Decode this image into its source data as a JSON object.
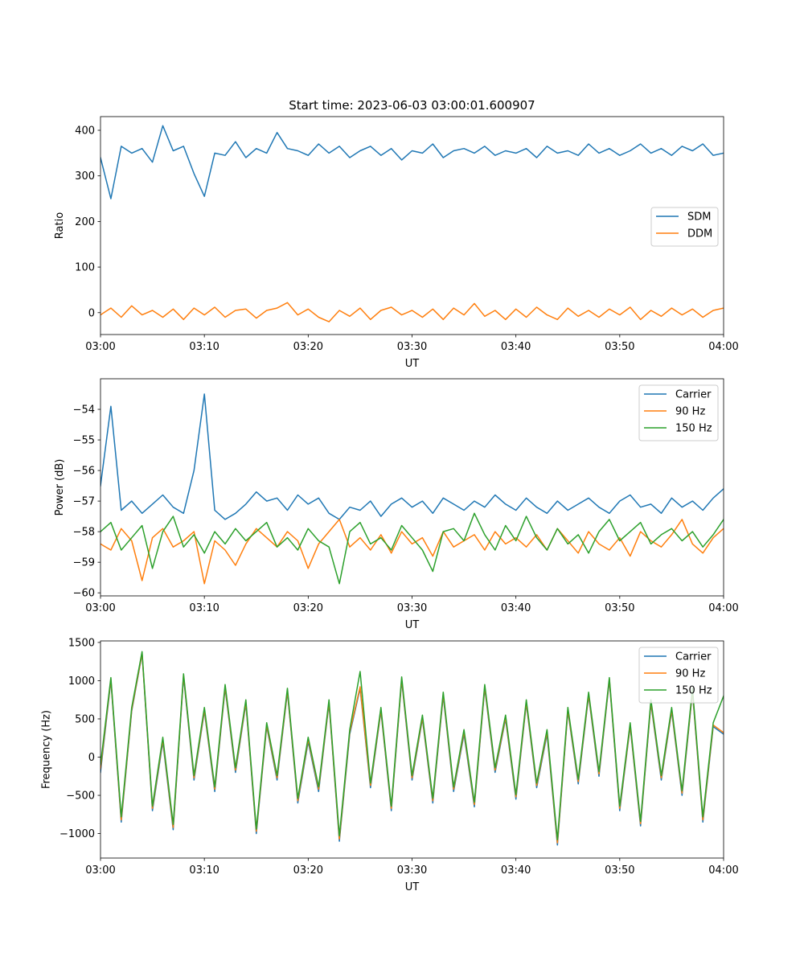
{
  "chart_data": [
    {
      "type": "line",
      "title": "Start time: 2023-06-03 03:00:01.600907",
      "xlabel": "UT",
      "ylabel": "Ratio",
      "xlim": [
        "03:00",
        "04:00"
      ],
      "xticks": [
        "03:00",
        "03:10",
        "03:20",
        "03:30",
        "03:40",
        "03:50",
        "04:00"
      ],
      "ylim": [
        -48,
        430
      ],
      "yticks": [
        0,
        100,
        200,
        300,
        400
      ],
      "yticklabels": [
        "0",
        "100",
        "200",
        "300",
        "400"
      ],
      "legend": "center-right",
      "grid": false,
      "x": [
        "03:00",
        "03:01",
        "03:02",
        "03:03",
        "03:04",
        "03:05",
        "03:06",
        "03:07",
        "03:08",
        "03:09",
        "03:10",
        "03:11",
        "03:12",
        "03:13",
        "03:14",
        "03:15",
        "03:16",
        "03:17",
        "03:18",
        "03:19",
        "03:20",
        "03:21",
        "03:22",
        "03:23",
        "03:24",
        "03:25",
        "03:26",
        "03:27",
        "03:28",
        "03:29",
        "03:30",
        "03:31",
        "03:32",
        "03:33",
        "03:34",
        "03:35",
        "03:36",
        "03:37",
        "03:38",
        "03:39",
        "03:40",
        "03:41",
        "03:42",
        "03:43",
        "03:44",
        "03:45",
        "03:46",
        "03:47",
        "03:48",
        "03:49",
        "03:50",
        "03:51",
        "03:52",
        "03:53",
        "03:54",
        "03:55",
        "03:56",
        "03:57",
        "03:58",
        "03:59",
        "04:00"
      ],
      "series": [
        {
          "name": "SDM",
          "color": "#1f77b4",
          "values": [
            340,
            250,
            365,
            350,
            360,
            330,
            410,
            355,
            365,
            305,
            255,
            350,
            345,
            375,
            340,
            360,
            350,
            395,
            360,
            355,
            345,
            370,
            350,
            365,
            340,
            355,
            365,
            345,
            360,
            335,
            355,
            350,
            370,
            340,
            355,
            360,
            350,
            365,
            345,
            355,
            350,
            360,
            340,
            365,
            350,
            355,
            345,
            370,
            350,
            360,
            345,
            355,
            370,
            350,
            360,
            345,
            365,
            355,
            370,
            345,
            350
          ]
        },
        {
          "name": "DDM",
          "color": "#ff7f0e",
          "values": [
            -5,
            10,
            -10,
            15,
            -5,
            5,
            -10,
            8,
            -15,
            10,
            -5,
            12,
            -10,
            5,
            8,
            -12,
            5,
            10,
            22,
            -5,
            8,
            -10,
            -20,
            5,
            -8,
            10,
            -15,
            5,
            12,
            -5,
            5,
            -10,
            8,
            -15,
            10,
            -5,
            20,
            -8,
            5,
            -15,
            8,
            -10,
            12,
            -5,
            -15,
            10,
            -8,
            5,
            -10,
            8,
            -5,
            12,
            -15,
            5,
            -8,
            10,
            -5,
            8,
            -10,
            5,
            10
          ]
        }
      ]
    },
    {
      "type": "line",
      "xlabel": "UT",
      "ylabel": "Power (dB)",
      "xlim": [
        "03:00",
        "04:00"
      ],
      "xticks": [
        "03:00",
        "03:10",
        "03:20",
        "03:30",
        "03:40",
        "03:50",
        "04:00"
      ],
      "ylim": [
        -60.1,
        -53.0
      ],
      "yticks": [
        -60,
        -59,
        -58,
        -57,
        -56,
        -55,
        -54
      ],
      "yticklabels": [
        "−60",
        "−59",
        "−58",
        "−57",
        "−56",
        "−55",
        "−54"
      ],
      "legend": "top-right",
      "grid": false,
      "x": [
        "03:00",
        "03:01",
        "03:02",
        "03:03",
        "03:04",
        "03:05",
        "03:06",
        "03:07",
        "03:08",
        "03:09",
        "03:10",
        "03:11",
        "03:12",
        "03:13",
        "03:14",
        "03:15",
        "03:16",
        "03:17",
        "03:18",
        "03:19",
        "03:20",
        "03:21",
        "03:22",
        "03:23",
        "03:24",
        "03:25",
        "03:26",
        "03:27",
        "03:28",
        "03:29",
        "03:30",
        "03:31",
        "03:32",
        "03:33",
        "03:34",
        "03:35",
        "03:36",
        "03:37",
        "03:38",
        "03:39",
        "03:40",
        "03:41",
        "03:42",
        "03:43",
        "03:44",
        "03:45",
        "03:46",
        "03:47",
        "03:48",
        "03:49",
        "03:50",
        "03:51",
        "03:52",
        "03:53",
        "03:54",
        "03:55",
        "03:56",
        "03:57",
        "03:58",
        "03:59",
        "04:00"
      ],
      "series": [
        {
          "name": "Carrier",
          "color": "#1f77b4",
          "values": [
            -56.5,
            -53.9,
            -57.3,
            -57.0,
            -57.4,
            -57.1,
            -56.8,
            -57.2,
            -57.4,
            -56.0,
            -53.5,
            -57.3,
            -57.6,
            -57.4,
            -57.1,
            -56.7,
            -57.0,
            -56.9,
            -57.3,
            -56.8,
            -57.1,
            -56.9,
            -57.4,
            -57.6,
            -57.2,
            -57.3,
            -57.0,
            -57.5,
            -57.1,
            -56.9,
            -57.2,
            -57.0,
            -57.4,
            -56.9,
            -57.1,
            -57.3,
            -57.0,
            -57.2,
            -56.8,
            -57.1,
            -57.3,
            -56.9,
            -57.2,
            -57.4,
            -57.0,
            -57.3,
            -57.1,
            -56.9,
            -57.2,
            -57.4,
            -57.0,
            -56.8,
            -57.2,
            -57.1,
            -57.4,
            -56.9,
            -57.2,
            -57.0,
            -57.3,
            -56.9,
            -56.6
          ]
        },
        {
          "name": "90 Hz",
          "color": "#ff7f0e",
          "values": [
            -58.4,
            -58.6,
            -57.9,
            -58.3,
            -59.6,
            -58.2,
            -57.9,
            -58.5,
            -58.3,
            -58.0,
            -59.7,
            -58.3,
            -58.6,
            -59.1,
            -58.4,
            -57.9,
            -58.2,
            -58.5,
            -58.0,
            -58.3,
            -59.2,
            -58.4,
            -58.0,
            -57.6,
            -58.5,
            -58.2,
            -58.6,
            -58.1,
            -58.7,
            -58.0,
            -58.4,
            -58.2,
            -58.8,
            -58.0,
            -58.5,
            -58.3,
            -58.1,
            -58.6,
            -58.0,
            -58.4,
            -58.2,
            -58.5,
            -58.1,
            -58.6,
            -57.9,
            -58.3,
            -58.7,
            -58.0,
            -58.4,
            -58.6,
            -58.2,
            -58.8,
            -58.0,
            -58.3,
            -58.5,
            -58.1,
            -57.6,
            -58.4,
            -58.7,
            -58.2,
            -57.9
          ]
        },
        {
          "name": "150 Hz",
          "color": "#2ca02c",
          "values": [
            -58.0,
            -57.7,
            -58.6,
            -58.2,
            -57.8,
            -59.2,
            -58.0,
            -57.5,
            -58.5,
            -58.1,
            -58.7,
            -58.0,
            -58.4,
            -57.9,
            -58.3,
            -58.0,
            -57.7,
            -58.5,
            -58.2,
            -58.6,
            -57.9,
            -58.3,
            -58.5,
            -59.7,
            -58.0,
            -57.7,
            -58.4,
            -58.2,
            -58.6,
            -57.8,
            -58.2,
            -58.6,
            -59.3,
            -58.0,
            -57.9,
            -58.3,
            -57.4,
            -58.1,
            -58.6,
            -57.8,
            -58.3,
            -57.5,
            -58.2,
            -58.6,
            -57.9,
            -58.4,
            -58.1,
            -58.7,
            -58.0,
            -57.6,
            -58.3,
            -58.0,
            -57.7,
            -58.4,
            -58.1,
            -57.9,
            -58.3,
            -58.0,
            -58.5,
            -58.1,
            -57.6
          ]
        }
      ]
    },
    {
      "type": "line",
      "xlabel": "UT",
      "ylabel": "Frequency (Hz)",
      "xlim": [
        "03:00",
        "04:00"
      ],
      "xticks": [
        "03:00",
        "03:10",
        "03:20",
        "03:30",
        "03:40",
        "03:50",
        "04:00"
      ],
      "ylim": [
        -1320,
        1520
      ],
      "yticks": [
        -1000,
        -500,
        0,
        500,
        1000,
        1500
      ],
      "yticklabels": [
        "−1000",
        "−500",
        "0",
        "500",
        "1000",
        "1500"
      ],
      "legend": "top-right",
      "grid": false,
      "x": [
        "03:00",
        "03:01",
        "03:02",
        "03:03",
        "03:04",
        "03:05",
        "03:06",
        "03:07",
        "03:08",
        "03:09",
        "03:10",
        "03:11",
        "03:12",
        "03:13",
        "03:14",
        "03:15",
        "03:16",
        "03:17",
        "03:18",
        "03:19",
        "03:20",
        "03:21",
        "03:22",
        "03:23",
        "03:24",
        "03:25",
        "03:26",
        "03:27",
        "03:28",
        "03:29",
        "03:30",
        "03:31",
        "03:32",
        "03:33",
        "03:34",
        "03:35",
        "03:36",
        "03:37",
        "03:38",
        "03:39",
        "03:40",
        "03:41",
        "03:42",
        "03:43",
        "03:44",
        "03:45",
        "03:46",
        "03:47",
        "03:48",
        "03:49",
        "03:50",
        "03:51",
        "03:52",
        "03:53",
        "03:54",
        "03:55",
        "03:56",
        "03:57",
        "03:58",
        "03:59",
        "04:00"
      ],
      "series": [
        {
          "name": "Carrier",
          "color": "#1f77b4",
          "values": [
            -200,
            1000,
            -850,
            600,
            1350,
            -700,
            200,
            -950,
            1050,
            -300,
            600,
            -450,
            900,
            -200,
            700,
            -1000,
            400,
            -300,
            850,
            -600,
            200,
            -450,
            700,
            -1100,
            300,
            900,
            -400,
            600,
            -700,
            1000,
            -300,
            500,
            -600,
            800,
            -450,
            300,
            -650,
            900,
            -200,
            500,
            -550,
            700,
            -400,
            300,
            -1150,
            600,
            -350,
            800,
            -250,
            1000,
            -700,
            400,
            -900,
            700,
            -300,
            600,
            -500,
            850,
            -850,
            400,
            300
          ]
        },
        {
          "name": "90 Hz",
          "color": "#ff7f0e",
          "values": [
            -150,
            1020,
            -820,
            620,
            1360,
            -670,
            230,
            -920,
            1070,
            -270,
            620,
            -420,
            920,
            -170,
            720,
            -970,
            420,
            -270,
            870,
            -570,
            230,
            -420,
            720,
            -1070,
            330,
            920,
            -370,
            620,
            -670,
            1020,
            -270,
            520,
            -570,
            820,
            -420,
            330,
            -620,
            920,
            -170,
            520,
            -520,
            720,
            -370,
            330,
            -1120,
            620,
            -320,
            820,
            -220,
            1020,
            -670,
            420,
            -870,
            720,
            -270,
            620,
            -470,
            870,
            -820,
            420,
            320
          ]
        },
        {
          "name": "150 Hz",
          "color": "#2ca02c",
          "values": [
            -100,
            1040,
            -780,
            650,
            1380,
            -640,
            260,
            -880,
            1090,
            -240,
            650,
            -390,
            950,
            -140,
            750,
            -940,
            450,
            -240,
            900,
            -540,
            260,
            -390,
            750,
            -1030,
            360,
            1120,
            -340,
            650,
            -640,
            1050,
            -240,
            550,
            -540,
            850,
            -390,
            360,
            -590,
            950,
            -140,
            550,
            -490,
            750,
            -340,
            360,
            -1080,
            650,
            -290,
            850,
            -190,
            1040,
            -640,
            450,
            -840,
            750,
            -240,
            650,
            -440,
            900,
            -780,
            450,
            800
          ]
        }
      ]
    }
  ]
}
